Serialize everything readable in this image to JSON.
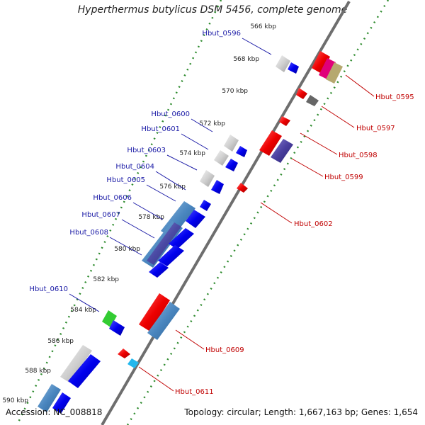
{
  "title": "Hyperthermus butylicus DSM 5456, complete genome",
  "footer": {
    "accession": "Accession: NC_008818",
    "summary": "Topology: circular; Length: 1,667,163 bp; Genes: 1,654"
  },
  "colors": {
    "backbone": "#777777",
    "dots": "#2e8b2e",
    "left_label": "#1a1aa6",
    "right_label": "#c00000"
  },
  "ticks": [
    "566 kbp",
    "568 kbp",
    "570 kbp",
    "572 kbp",
    "574 kbp",
    "576 kbp",
    "578 kbp",
    "580 kbp",
    "582 kbp",
    "584 kbp",
    "586 kbp",
    "588 kbp",
    "590 kbp"
  ],
  "genes_left": [
    "Hbut_0596",
    "Hbut_0600",
    "Hbut_0601",
    "Hbut_0603",
    "Hbut_0604",
    "Hbut_0605",
    "Hbut_0606",
    "Hbut_0607",
    "Hbut_0608",
    "Hbut_0610"
  ],
  "genes_right": [
    "Hbut_0595",
    "Hbut_0597",
    "Hbut_0598",
    "Hbut_0599",
    "Hbut_0602",
    "Hbut_0609",
    "Hbut_0611"
  ]
}
